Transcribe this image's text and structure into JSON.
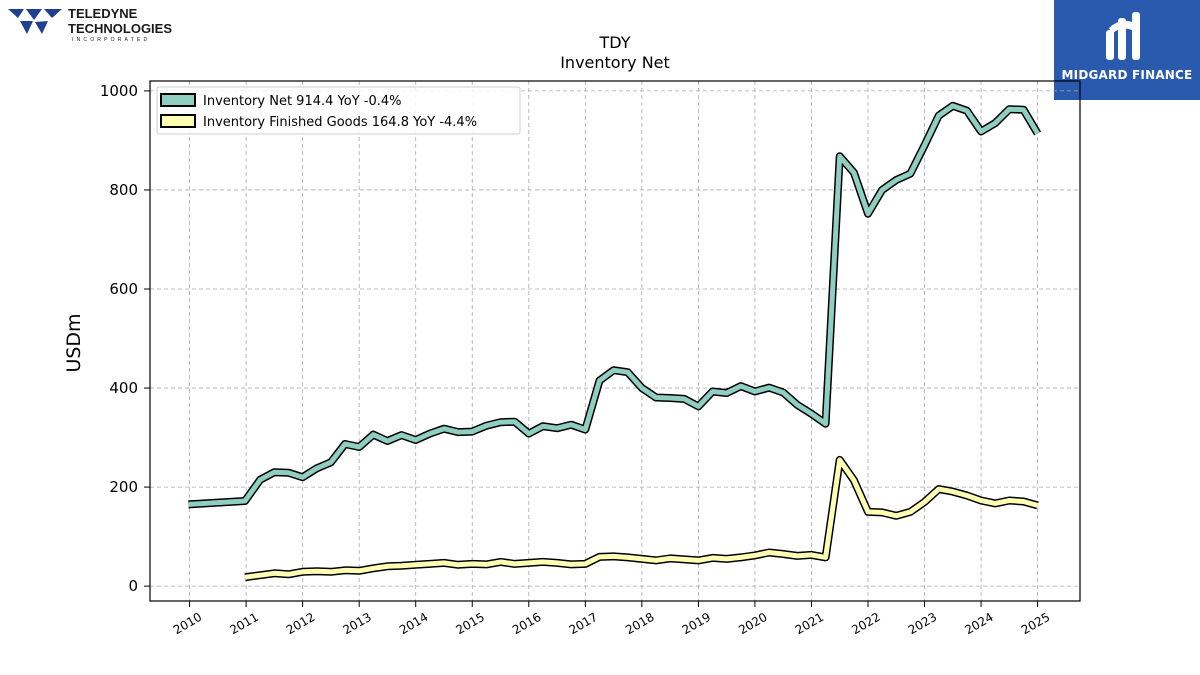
{
  "logo_left": {
    "line1": "TELEDYNE",
    "line2": "TECHNOLOGIES",
    "line3": "INCORPORATED",
    "color": "#1f3f8f"
  },
  "logo_right": {
    "text": "MIDGARD FINANCE",
    "bg_color": "#2a5aad"
  },
  "chart_data": {
    "type": "line",
    "title": "TDY",
    "subtitle": "Inventory Net",
    "ylabel": "USDm",
    "xlabel": "",
    "ylim": [
      -30,
      1020
    ],
    "xlim": [
      2009.3,
      2025.75
    ],
    "yticks": [
      0,
      200,
      400,
      600,
      800,
      1000
    ],
    "xticks": [
      "2010",
      "2011",
      "2012",
      "2013",
      "2014",
      "2015",
      "2016",
      "2017",
      "2018",
      "2019",
      "2020",
      "2021",
      "2022",
      "2023",
      "2024",
      "2025"
    ],
    "grid": true,
    "legend_position": "top-left",
    "series": [
      {
        "name": "Inventory Net  914.4 YoY -0.4%",
        "color": "#8ecfc2",
        "points": [
          [
            2009.98,
            165
          ],
          [
            2010.98,
            172
          ],
          [
            2011.25,
            215
          ],
          [
            2011.5,
            230
          ],
          [
            2011.75,
            229
          ],
          [
            2012.0,
            220
          ],
          [
            2012.25,
            238
          ],
          [
            2012.5,
            250
          ],
          [
            2012.75,
            287
          ],
          [
            2013.0,
            281
          ],
          [
            2013.25,
            306
          ],
          [
            2013.5,
            293
          ],
          [
            2013.75,
            305
          ],
          [
            2014.0,
            295
          ],
          [
            2014.25,
            308
          ],
          [
            2014.5,
            318
          ],
          [
            2014.75,
            311
          ],
          [
            2015.0,
            312
          ],
          [
            2015.25,
            324
          ],
          [
            2015.5,
            331
          ],
          [
            2015.75,
            332
          ],
          [
            2016.0,
            308
          ],
          [
            2016.25,
            323
          ],
          [
            2016.5,
            319
          ],
          [
            2016.75,
            326
          ],
          [
            2017.0,
            316
          ],
          [
            2017.25,
            415
          ],
          [
            2017.5,
            436
          ],
          [
            2017.75,
            432
          ],
          [
            2018.0,
            400
          ],
          [
            2018.25,
            381
          ],
          [
            2018.5,
            380
          ],
          [
            2018.75,
            378
          ],
          [
            2019.0,
            363
          ],
          [
            2019.25,
            393
          ],
          [
            2019.5,
            390
          ],
          [
            2019.75,
            404
          ],
          [
            2020.0,
            393
          ],
          [
            2020.25,
            401
          ],
          [
            2020.5,
            391
          ],
          [
            2020.75,
            366
          ],
          [
            2021.0,
            348
          ],
          [
            2021.25,
            328
          ],
          [
            2021.5,
            868
          ],
          [
            2021.75,
            835
          ],
          [
            2022.0,
            752
          ],
          [
            2022.25,
            800
          ],
          [
            2022.5,
            820
          ],
          [
            2022.75,
            833
          ],
          [
            2023.0,
            890
          ],
          [
            2023.25,
            950
          ],
          [
            2023.5,
            970
          ],
          [
            2023.75,
            960
          ],
          [
            2024.0,
            918
          ],
          [
            2024.25,
            935
          ],
          [
            2024.5,
            963
          ],
          [
            2024.75,
            962
          ],
          [
            2025.0,
            914
          ]
        ]
      },
      {
        "name": "Inventory Finished Goods  164.8 YoY -4.4%",
        "color": "#ffffb3",
        "points": [
          [
            2010.98,
            18
          ],
          [
            2011.25,
            22
          ],
          [
            2011.5,
            26
          ],
          [
            2011.75,
            24
          ],
          [
            2012.0,
            29
          ],
          [
            2012.25,
            30
          ],
          [
            2012.5,
            29
          ],
          [
            2012.75,
            32
          ],
          [
            2013.0,
            31
          ],
          [
            2013.25,
            36
          ],
          [
            2013.5,
            40
          ],
          [
            2013.75,
            41
          ],
          [
            2014.0,
            43
          ],
          [
            2014.25,
            45
          ],
          [
            2014.5,
            47
          ],
          [
            2014.75,
            43
          ],
          [
            2015.0,
            45
          ],
          [
            2015.25,
            44
          ],
          [
            2015.5,
            49
          ],
          [
            2015.75,
            45
          ],
          [
            2016.0,
            47
          ],
          [
            2016.25,
            49
          ],
          [
            2016.5,
            47
          ],
          [
            2016.75,
            44
          ],
          [
            2017.0,
            45
          ],
          [
            2017.25,
            59
          ],
          [
            2017.5,
            60
          ],
          [
            2017.75,
            58
          ],
          [
            2018.0,
            55
          ],
          [
            2018.25,
            52
          ],
          [
            2018.5,
            56
          ],
          [
            2018.75,
            54
          ],
          [
            2019.0,
            52
          ],
          [
            2019.25,
            57
          ],
          [
            2019.5,
            55
          ],
          [
            2019.75,
            58
          ],
          [
            2020.0,
            62
          ],
          [
            2020.25,
            68
          ],
          [
            2020.5,
            65
          ],
          [
            2020.75,
            61
          ],
          [
            2021.0,
            63
          ],
          [
            2021.25,
            58
          ],
          [
            2021.5,
            255
          ],
          [
            2021.75,
            214
          ],
          [
            2022.0,
            150
          ],
          [
            2022.25,
            149
          ],
          [
            2022.5,
            142
          ],
          [
            2022.75,
            150
          ],
          [
            2023.0,
            170
          ],
          [
            2023.25,
            196
          ],
          [
            2023.5,
            191
          ],
          [
            2023.75,
            183
          ],
          [
            2024.0,
            173
          ],
          [
            2024.25,
            167
          ],
          [
            2024.5,
            173
          ],
          [
            2024.75,
            171
          ],
          [
            2025.0,
            163
          ]
        ]
      }
    ]
  }
}
